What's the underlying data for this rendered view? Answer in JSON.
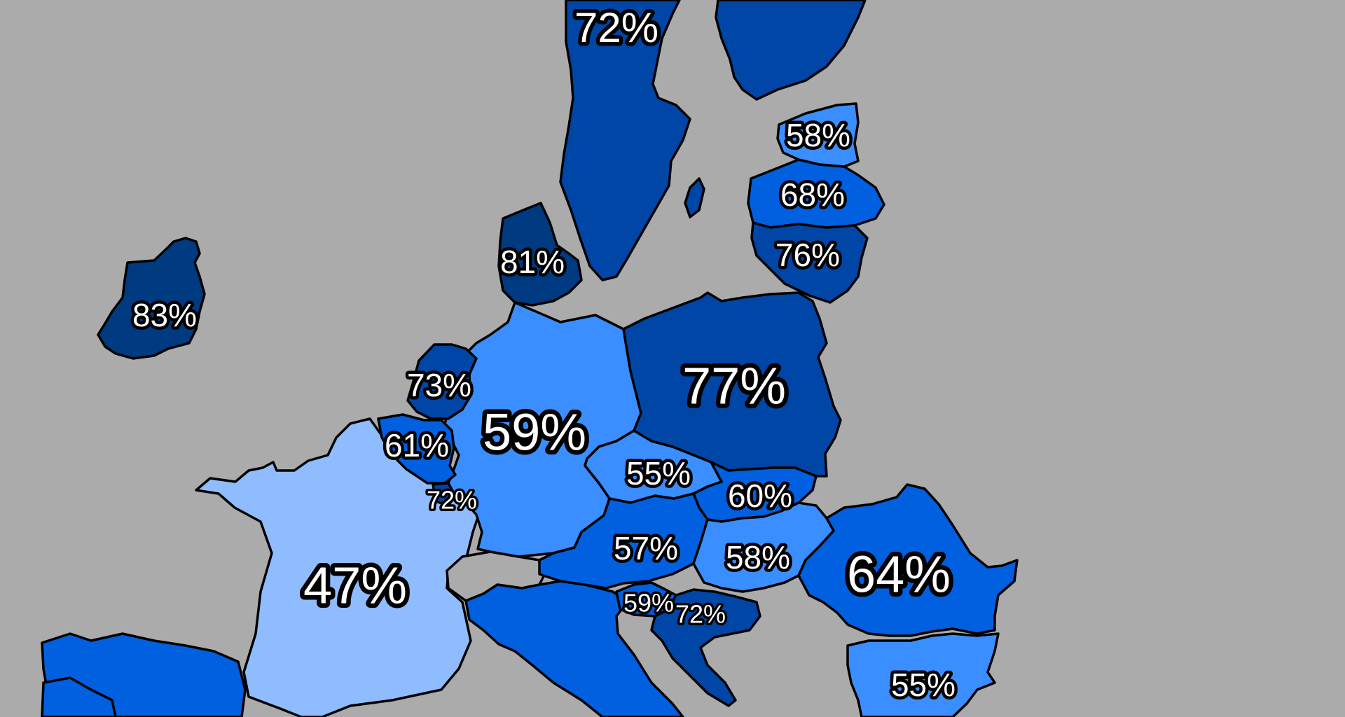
{
  "colors": {
    "background": "#ababab",
    "very_dark": "#003a80",
    "dark": "#0046a6",
    "medium": "#0060e0",
    "light": "#3a8eff",
    "very_light": "#8fbcff",
    "border": "#000000",
    "label_fill": "#ffffff",
    "label_outline": "#000000"
  },
  "labels": {
    "norway": "72%",
    "ireland": "83%",
    "denmark": "81%",
    "estonia": "58%",
    "latvia": "68%",
    "lithuania": "76%",
    "netherlands": "73%",
    "poland": "77%",
    "germany": "59%",
    "belgium": "61%",
    "czechia": "55%",
    "luxembourg": "72%",
    "slovakia": "60%",
    "austria": "57%",
    "hungary": "58%",
    "romania": "64%",
    "france": "47%",
    "slovenia": "59%",
    "croatia": "72%",
    "bulgaria": "55%"
  }
}
